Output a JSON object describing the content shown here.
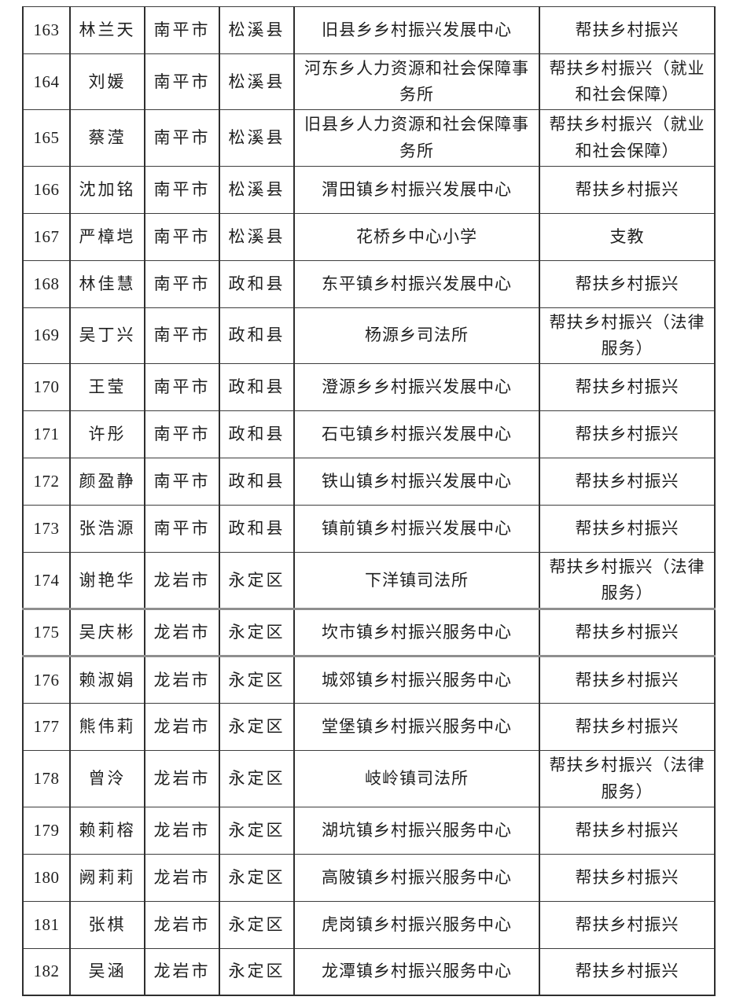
{
  "document": {
    "kind": "personnel-assignment-table",
    "visible_row_range": "163-182"
  },
  "colors": {
    "background": "#ffffff",
    "text": "#1f1f1f",
    "grid_line": "#2f2f2f",
    "page_break_divider": "#8f8f8f"
  },
  "layout_hints": {
    "thick_divider_above_rows": [
      "175",
      "176"
    ]
  },
  "rows": [
    {
      "no": "163",
      "name": "林兰天",
      "city": "南平市",
      "county": "松溪县",
      "organization": "旧县乡乡村振兴发展中心",
      "role": "帮扶乡村振兴"
    },
    {
      "no": "164",
      "name": "刘媛",
      "city": "南平市",
      "county": "松溪县",
      "organization": "河东乡人力资源和社会保障事务所",
      "role": "帮扶乡村振兴（就业和社会保障）"
    },
    {
      "no": "165",
      "name": "蔡滢",
      "city": "南平市",
      "county": "松溪县",
      "organization": "旧县乡人力资源和社会保障事务所",
      "role": "帮扶乡村振兴（就业和社会保障）"
    },
    {
      "no": "166",
      "name": "沈加铭",
      "city": "南平市",
      "county": "松溪县",
      "organization": "渭田镇乡村振兴发展中心",
      "role": "帮扶乡村振兴"
    },
    {
      "no": "167",
      "name": "严樟垲",
      "city": "南平市",
      "county": "松溪县",
      "organization": "花桥乡中心小学",
      "role": "支教"
    },
    {
      "no": "168",
      "name": "林佳慧",
      "city": "南平市",
      "county": "政和县",
      "organization": "东平镇乡村振兴发展中心",
      "role": "帮扶乡村振兴"
    },
    {
      "no": "169",
      "name": "吴丁兴",
      "city": "南平市",
      "county": "政和县",
      "organization": "杨源乡司法所",
      "role": "帮扶乡村振兴（法律服务）"
    },
    {
      "no": "170",
      "name": "王莹",
      "city": "南平市",
      "county": "政和县",
      "organization": "澄源乡乡村振兴发展中心",
      "role": "帮扶乡村振兴"
    },
    {
      "no": "171",
      "name": "许彤",
      "city": "南平市",
      "county": "政和县",
      "organization": "石屯镇乡村振兴发展中心",
      "role": "帮扶乡村振兴"
    },
    {
      "no": "172",
      "name": "颜盈静",
      "city": "南平市",
      "county": "政和县",
      "organization": "铁山镇乡村振兴发展中心",
      "role": "帮扶乡村振兴"
    },
    {
      "no": "173",
      "name": "张浩源",
      "city": "南平市",
      "county": "政和县",
      "organization": "镇前镇乡村振兴发展中心",
      "role": "帮扶乡村振兴"
    },
    {
      "no": "174",
      "name": "谢艳华",
      "city": "龙岩市",
      "county": "永定区",
      "organization": "下洋镇司法所",
      "role": "帮扶乡村振兴（法律服务）"
    },
    {
      "no": "175",
      "name": "吴庆彬",
      "city": "龙岩市",
      "county": "永定区",
      "organization": "坎市镇乡村振兴服务中心",
      "role": "帮扶乡村振兴"
    },
    {
      "no": "176",
      "name": "赖淑娟",
      "city": "龙岩市",
      "county": "永定区",
      "organization": "城郊镇乡村振兴服务中心",
      "role": "帮扶乡村振兴"
    },
    {
      "no": "177",
      "name": "熊伟莉",
      "city": "龙岩市",
      "county": "永定区",
      "organization": "堂堡镇乡村振兴服务中心",
      "role": "帮扶乡村振兴"
    },
    {
      "no": "178",
      "name": "曾泠",
      "city": "龙岩市",
      "county": "永定区",
      "organization": "岐岭镇司法所",
      "role": "帮扶乡村振兴（法律服务）"
    },
    {
      "no": "179",
      "name": "赖莉榕",
      "city": "龙岩市",
      "county": "永定区",
      "organization": "湖坑镇乡村振兴服务中心",
      "role": "帮扶乡村振兴"
    },
    {
      "no": "180",
      "name": "阙莉莉",
      "city": "龙岩市",
      "county": "永定区",
      "organization": "高陂镇乡村振兴服务中心",
      "role": "帮扶乡村振兴"
    },
    {
      "no": "181",
      "name": "张棋",
      "city": "龙岩市",
      "county": "永定区",
      "organization": "虎岗镇乡村振兴服务中心",
      "role": "帮扶乡村振兴"
    },
    {
      "no": "182",
      "name": "吴涵",
      "city": "龙岩市",
      "county": "永定区",
      "organization": "龙潭镇乡村振兴服务中心",
      "role": "帮扶乡村振兴"
    }
  ]
}
